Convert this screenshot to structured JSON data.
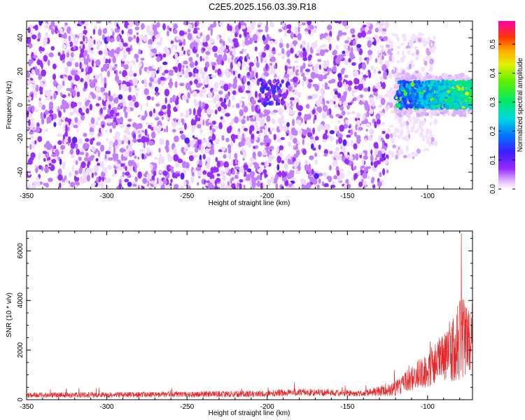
{
  "title": "C2E5.2025.156.03.39.R18",
  "chart_data": [
    {
      "type": "heatmap",
      "xlabel": "Height of straight line (km)",
      "ylabel": "Frequency (Hz)",
      "xlim": [
        -350,
        -72
      ],
      "ylim": [
        -50,
        50
      ],
      "xticks": [
        -350,
        -300,
        -250,
        -200,
        -150,
        -100
      ],
      "xtick_labels": [
        "-350",
        "-300",
        "-250",
        "-200",
        "-150",
        "-100"
      ],
      "yticks": [
        -40,
        -20,
        0,
        20,
        40
      ],
      "ytick_labels": [
        "-40",
        "-20",
        "0",
        "20",
        "40"
      ],
      "colorbar": {
        "label": "Normalized spectral amplitude",
        "range": [
          0,
          0.58
        ],
        "ticks": [
          0.0,
          0.1,
          0.2,
          0.3,
          0.4,
          0.5
        ],
        "tick_labels": [
          "0.0",
          "0.1",
          "0.2",
          "0.3",
          "0.4",
          "0.5"
        ],
        "colormap": "rainbow (white → violet → blue → cyan → green → yellow → red → magenta)"
      },
      "regions": [
        {
          "x": [
            -350,
            -125
          ],
          "y": [
            -50,
            50
          ],
          "amplitude": 0.03,
          "note": "broadband speckle"
        },
        {
          "x": [
            -125,
            -95
          ],
          "y": [
            -32,
            42
          ],
          "amplitude": 0.02,
          "note": "sparse speckle"
        },
        {
          "x": [
            -205,
            -190
          ],
          "y": [
            0,
            15
          ],
          "amplitude": 0.12,
          "note": "patch"
        },
        {
          "x": [
            -120,
            -72
          ],
          "y": [
            -2,
            14
          ],
          "amplitude": 0.3,
          "peak": 0.45,
          "note": "strong band"
        }
      ],
      "grid": false
    },
    {
      "type": "line",
      "xlabel": "Height of straight line (km)",
      "ylabel": "SNR (10 * v/v)",
      "xlim": [
        -350,
        -72
      ],
      "ylim": [
        0,
        6800
      ],
      "xticks": [
        -350,
        -300,
        -250,
        -200,
        -150,
        -100
      ],
      "xtick_labels": [
        "-350",
        "-300",
        "-250",
        "-200",
        "-150",
        "-100"
      ],
      "yticks": [
        0,
        2000,
        4000,
        6000
      ],
      "ytick_labels": [
        "0",
        "2000",
        "4000",
        "6000"
      ],
      "series": [
        {
          "color": "#e8282a",
          "envelope": [
            {
              "x": -350,
              "base": 150,
              "spread": 200
            },
            {
              "x": -200,
              "base": 200,
              "spread": 250
            },
            {
              "x": -185,
              "base": 260,
              "spread": 300
            },
            {
              "x": -140,
              "base": 220,
              "spread": 220
            },
            {
              "x": -120,
              "base": 350,
              "spread": 600
            },
            {
              "x": -110,
              "base": 700,
              "spread": 1000
            },
            {
              "x": -100,
              "base": 1000,
              "spread": 1400
            },
            {
              "x": -90,
              "base": 1400,
              "spread": 2100
            },
            {
              "x": -80,
              "base": 1900,
              "spread": 3300
            },
            {
              "x": -72,
              "base": 2200,
              "spread": 2800
            }
          ],
          "peak": {
            "x": -79,
            "y": 6700
          }
        }
      ],
      "grid": false
    }
  ]
}
